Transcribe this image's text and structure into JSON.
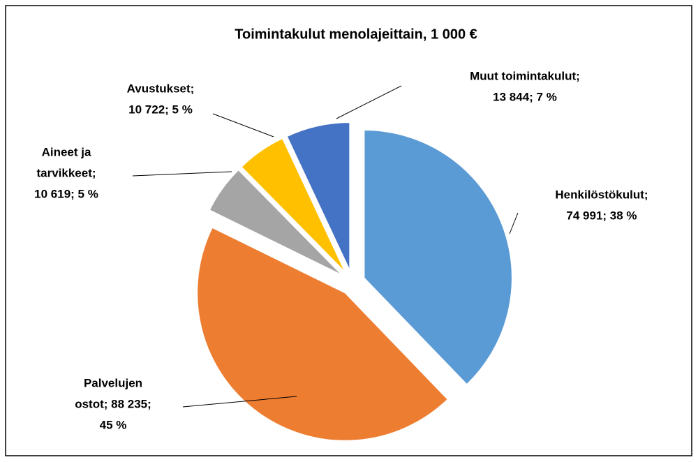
{
  "chart_data": {
    "type": "pie",
    "title": "Toimintakulut menolajeittain, 1 000 €",
    "values": [
      74991,
      88235,
      10619,
      10722,
      13844
    ],
    "value_labels": [
      [
        "Henkilöstökulut;",
        "74 991; 38 %"
      ],
      [
        "Palvelujen",
        "ostot; 88 235;",
        "45 %"
      ],
      [
        "Aineet ja",
        "tarvikkeet;",
        "10 619; 5 %"
      ],
      [
        "Avustukset;",
        "10 722; 5 %"
      ],
      [
        "Muut toimintakulut;",
        "13 844; 7 %"
      ]
    ],
    "colors": [
      "#5b9bd5",
      "#ed7d31",
      "#a5a5a5",
      "#ffc000",
      "#4472c4"
    ]
  }
}
